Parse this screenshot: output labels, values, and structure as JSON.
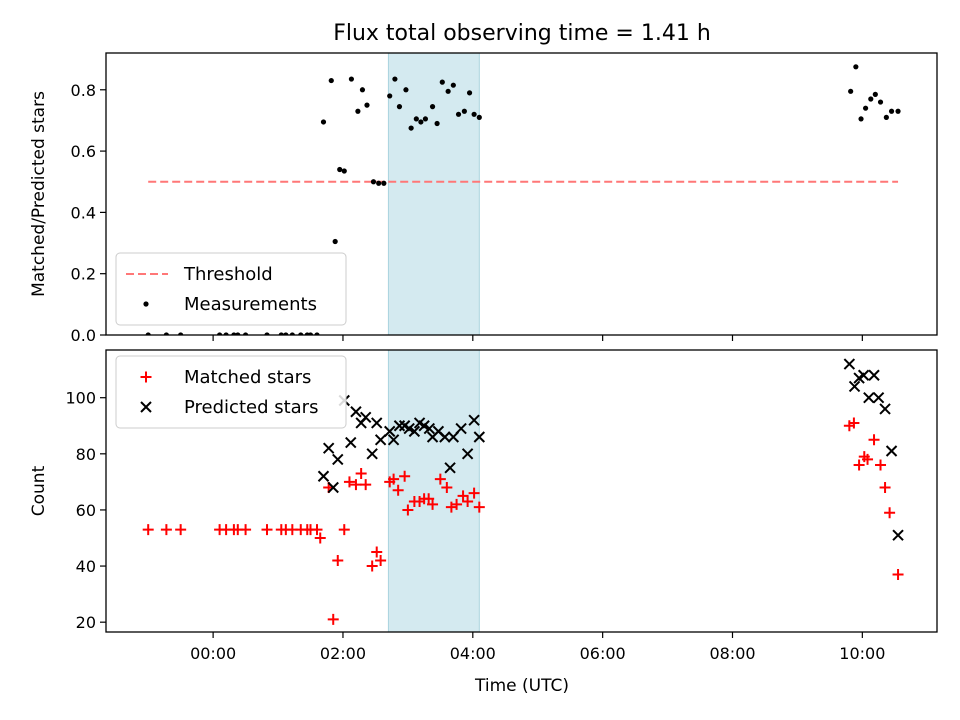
{
  "chart_data": {
    "type": "scatter",
    "title": "Flux total observing time = 1.41 h",
    "xlabel": "Time (UTC)",
    "xlim": [
      -1.65,
      11.15
    ],
    "x_ticks": [
      0,
      2,
      4,
      6,
      8,
      10
    ],
    "x_tick_labels": [
      "00:00",
      "02:00",
      "04:00",
      "06:00",
      "08:00",
      "10:00"
    ],
    "shaded_interval": [
      2.7,
      4.1
    ],
    "shade_color": "#d4eaf0",
    "panels": [
      {
        "ylabel": "Matched/Predicted stars",
        "ylim": [
          0,
          0.92
        ],
        "y_ticks": [
          0,
          0.2,
          0.4,
          0.6,
          0.8
        ],
        "y_tick_labels": [
          "0.0",
          "0.2",
          "0.4",
          "0.6",
          "0.8"
        ],
        "legend": {
          "placement": "lower-left"
        },
        "threshold": {
          "name": "Threshold",
          "value": 0.5,
          "x_range": [
            -1.0,
            10.55
          ],
          "color": "#ff7777"
        },
        "series": [
          {
            "name": "Measurements",
            "marker": "dot",
            "color": "#000000",
            "points": [
              [
                -1.0,
                0.0
              ],
              [
                -0.72,
                0.0
              ],
              [
                -0.5,
                0.0
              ],
              [
                0.1,
                0.0
              ],
              [
                0.2,
                0.0
              ],
              [
                0.32,
                0.0
              ],
              [
                0.38,
                0.0
              ],
              [
                0.5,
                0.0
              ],
              [
                0.83,
                0.0
              ],
              [
                1.05,
                0.0
              ],
              [
                1.12,
                0.0
              ],
              [
                1.22,
                0.0
              ],
              [
                1.35,
                0.0
              ],
              [
                1.45,
                0.0
              ],
              [
                1.5,
                0.0
              ],
              [
                1.6,
                0.0
              ],
              [
                1.7,
                0.695
              ],
              [
                1.82,
                0.83
              ],
              [
                1.88,
                0.305
              ],
              [
                1.95,
                0.54
              ],
              [
                2.02,
                0.535
              ],
              [
                2.13,
                0.835
              ],
              [
                2.23,
                0.73
              ],
              [
                2.3,
                0.8
              ],
              [
                2.37,
                0.75
              ],
              [
                2.47,
                0.5
              ],
              [
                2.55,
                0.495
              ],
              [
                2.63,
                0.495
              ],
              [
                2.72,
                0.78
              ],
              [
                2.8,
                0.835
              ],
              [
                2.87,
                0.745
              ],
              [
                2.97,
                0.8
              ],
              [
                3.05,
                0.675
              ],
              [
                3.13,
                0.705
              ],
              [
                3.2,
                0.695
              ],
              [
                3.27,
                0.705
              ],
              [
                3.38,
                0.745
              ],
              [
                3.45,
                0.69
              ],
              [
                3.53,
                0.825
              ],
              [
                3.62,
                0.795
              ],
              [
                3.7,
                0.815
              ],
              [
                3.78,
                0.72
              ],
              [
                3.87,
                0.73
              ],
              [
                3.95,
                0.79
              ],
              [
                4.02,
                0.72
              ],
              [
                4.1,
                0.71
              ],
              [
                9.82,
                0.795
              ],
              [
                9.9,
                0.875
              ],
              [
                9.98,
                0.705
              ],
              [
                10.05,
                0.74
              ],
              [
                10.13,
                0.77
              ],
              [
                10.2,
                0.785
              ],
              [
                10.28,
                0.76
              ],
              [
                10.37,
                0.71
              ],
              [
                10.45,
                0.73
              ],
              [
                10.55,
                0.73
              ]
            ]
          }
        ]
      },
      {
        "ylabel": "Count",
        "ylim": [
          16.5,
          117
        ],
        "y_ticks": [
          20,
          40,
          60,
          80,
          100
        ],
        "y_tick_labels": [
          "20",
          "40",
          "60",
          "80",
          "100"
        ],
        "legend": {
          "placement": "top-left"
        },
        "series": [
          {
            "name": "Matched stars",
            "marker": "plus",
            "color": "#ff0000",
            "points": [
              [
                -1.0,
                53
              ],
              [
                -0.72,
                53
              ],
              [
                -0.5,
                53
              ],
              [
                0.1,
                53
              ],
              [
                0.2,
                53
              ],
              [
                0.32,
                53
              ],
              [
                0.38,
                53
              ],
              [
                0.5,
                53
              ],
              [
                0.83,
                53
              ],
              [
                1.05,
                53
              ],
              [
                1.12,
                53
              ],
              [
                1.22,
                53
              ],
              [
                1.35,
                53
              ],
              [
                1.45,
                53
              ],
              [
                1.5,
                53
              ],
              [
                1.6,
                53
              ],
              [
                1.65,
                50
              ],
              [
                1.78,
                68
              ],
              [
                1.85,
                21
              ],
              [
                1.92,
                42
              ],
              [
                2.02,
                53
              ],
              [
                2.1,
                70
              ],
              [
                2.2,
                69
              ],
              [
                2.28,
                73
              ],
              [
                2.35,
                69
              ],
              [
                2.45,
                40
              ],
              [
                2.52,
                45
              ],
              [
                2.58,
                42
              ],
              [
                2.72,
                70
              ],
              [
                2.78,
                71
              ],
              [
                2.85,
                67
              ],
              [
                2.95,
                72
              ],
              [
                3.0,
                60
              ],
              [
                3.1,
                63
              ],
              [
                3.18,
                63
              ],
              [
                3.25,
                64
              ],
              [
                3.32,
                64
              ],
              [
                3.38,
                62
              ],
              [
                3.5,
                71
              ],
              [
                3.6,
                68
              ],
              [
                3.67,
                61
              ],
              [
                3.75,
                62
              ],
              [
                3.85,
                65
              ],
              [
                3.92,
                63
              ],
              [
                4.02,
                66
              ],
              [
                4.1,
                61
              ],
              [
                9.8,
                90
              ],
              [
                9.87,
                91
              ],
              [
                9.95,
                76
              ],
              [
                10.03,
                79
              ],
              [
                10.08,
                78
              ],
              [
                10.18,
                85
              ],
              [
                10.28,
                76
              ],
              [
                10.35,
                68
              ],
              [
                10.42,
                59
              ],
              [
                10.55,
                37
              ]
            ]
          },
          {
            "name": "Predicted stars",
            "marker": "x",
            "color": "#000000",
            "points": [
              [
                1.7,
                72
              ],
              [
                1.78,
                82
              ],
              [
                1.85,
                68
              ],
              [
                1.92,
                78
              ],
              [
                2.02,
                99
              ],
              [
                2.12,
                84
              ],
              [
                2.2,
                95
              ],
              [
                2.28,
                91
              ],
              [
                2.35,
                93
              ],
              [
                2.45,
                80
              ],
              [
                2.52,
                91
              ],
              [
                2.58,
                85
              ],
              [
                2.72,
                88
              ],
              [
                2.78,
                85
              ],
              [
                2.87,
                90
              ],
              [
                2.95,
                90
              ],
              [
                3.02,
                89
              ],
              [
                3.1,
                88
              ],
              [
                3.18,
                91
              ],
              [
                3.25,
                90
              ],
              [
                3.33,
                89
              ],
              [
                3.38,
                86
              ],
              [
                3.47,
                88
              ],
              [
                3.57,
                86
              ],
              [
                3.65,
                75
              ],
              [
                3.7,
                86
              ],
              [
                3.82,
                89
              ],
              [
                3.92,
                80
              ],
              [
                4.02,
                92
              ],
              [
                4.1,
                86
              ],
              [
                9.8,
                112
              ],
              [
                9.88,
                104
              ],
              [
                9.95,
                107
              ],
              [
                10.02,
                108
              ],
              [
                10.1,
                100
              ],
              [
                10.18,
                108
              ],
              [
                10.25,
                100
              ],
              [
                10.35,
                96
              ],
              [
                10.45,
                81
              ],
              [
                10.55,
                51
              ]
            ]
          }
        ]
      }
    ]
  }
}
